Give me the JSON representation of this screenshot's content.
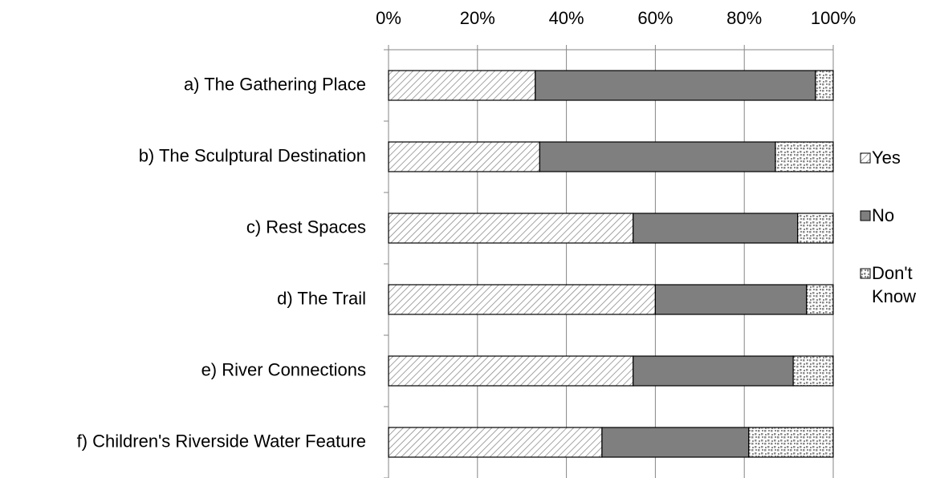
{
  "chart_data": {
    "type": "stacked_barh",
    "categories": [
      "a) The Gathering Place",
      "b) The Sculptural Destination",
      "c) Rest Spaces",
      "d) The Trail",
      "e) River Connections",
      "f) Children's Riverside Water Feature"
    ],
    "series": [
      {
        "name": "Yes",
        "color": "#8c8c8c",
        "pattern": "diagonal",
        "values": [
          33,
          34,
          55,
          60,
          55,
          48
        ]
      },
      {
        "name": "No",
        "color": "#7f7f7f",
        "pattern": "solid",
        "values": [
          63,
          53,
          37,
          34,
          36,
          33
        ]
      },
      {
        "name": "Don't Know",
        "color": "#8c8c8c",
        "pattern": "dots",
        "values": [
          4,
          13,
          8,
          6,
          9,
          19
        ]
      }
    ],
    "xlim": [
      0,
      100
    ],
    "xticks": [
      {
        "value": 0,
        "label": "0%"
      },
      {
        "value": 20,
        "label": "20%"
      },
      {
        "value": 40,
        "label": "40%"
      },
      {
        "value": 60,
        "label": "60%"
      },
      {
        "value": 80,
        "label": "80%"
      },
      {
        "value": 100,
        "label": "100%"
      }
    ],
    "grid": true,
    "legend": "right"
  }
}
